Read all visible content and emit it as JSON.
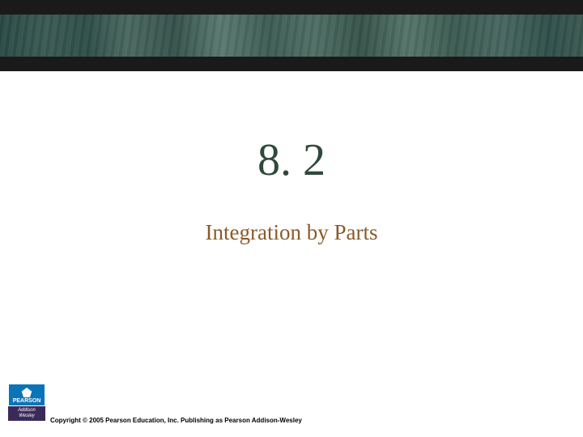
{
  "section": {
    "number": "8. 2",
    "title": "Integration by Parts"
  },
  "logo": {
    "pearson": "PEARSON",
    "aw_line1": "Addison",
    "aw_line2": "Wesley"
  },
  "footer": {
    "copyright": "Copyright © 2005 Pearson Education, Inc.  Publishing as Pearson Addison-Wesley"
  },
  "colors": {
    "section_number": "#2f4a3a",
    "section_title": "#8a5a2a",
    "banner_dark": "#1a1a1a",
    "pearson_blue": "#0a74b8",
    "aw_purple": "#3a2a5a"
  }
}
